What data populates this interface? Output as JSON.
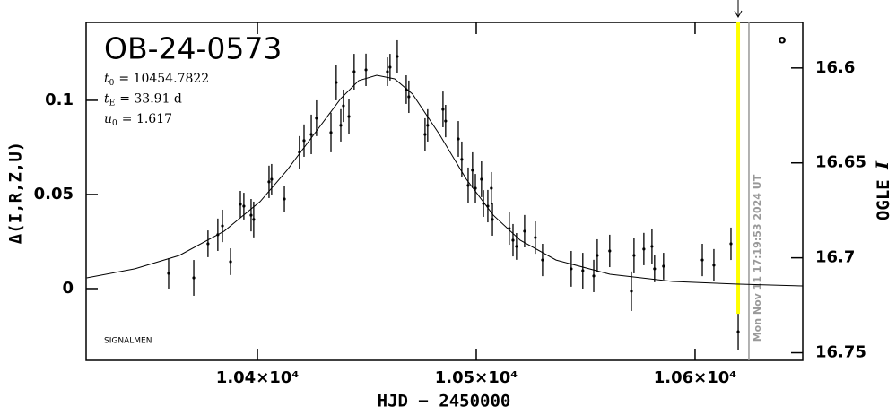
{
  "chart_data": {
    "type": "scatter",
    "title": "OB-24-0573",
    "params": [
      {
        "symbol": "t",
        "sub": "0",
        "text": "= 10454.7822"
      },
      {
        "symbol": "t",
        "sub": "E",
        "text": "= 33.91 d"
      },
      {
        "symbol": "u",
        "sub": "0",
        "text": "= 1.617"
      }
    ],
    "credit": "SIGNALMEN",
    "corner_mark": "o",
    "xlabel": "HJD − 2450000",
    "ylabel": "Δ(I,R,Z,U)",
    "y2label": [
      "OGLE",
      "I"
    ],
    "xlim": [
      10321.7,
      10649.2
    ],
    "xticks": [
      {
        "value": 10400,
        "label": "1.04×10⁴"
      },
      {
        "value": 10500,
        "label": "1.05×10⁴"
      },
      {
        "value": 10600,
        "label": "1.06×10⁴"
      }
    ],
    "ylim": [
      -0.0381,
      0.1414
    ],
    "yticks": [
      0,
      0.05,
      0.1
    ],
    "y2lim": [
      16.754,
      16.576
    ],
    "y2ticks": [
      16.6,
      16.65,
      16.7,
      16.75
    ],
    "color": "#000000",
    "highlight_x": 10619.7,
    "highlight_color": "#ffff00",
    "now_x": 10624.6,
    "now_label": "Mon Nov 11 17:19:53 2024 UT",
    "now_color": "#999999",
    "points": {
      "x": [
        10359.4,
        10370.9,
        10377.4,
        10381.9,
        10384.0,
        10387.7,
        10392.2,
        10393.8,
        10397.1,
        10398.3,
        10405.3,
        10406.5,
        10412.3,
        10419.2,
        10421.3,
        10424.6,
        10427.0,
        10433.6,
        10436.0,
        10438.1,
        10439.3,
        10441.8,
        10444.2,
        10449.6,
        10459.4,
        10460.6,
        10463.9,
        10468.0,
        10469.2,
        10476.6,
        10477.8,
        10484.8,
        10486.0,
        10491.8,
        10493.4,
        10496.3,
        10498.3,
        10499.6,
        10502.4,
        10503.3,
        10505.3,
        10506.9,
        10507.4,
        10515.1,
        10516.8,
        10518.4,
        10522.1,
        10527.0,
        10530.3,
        10543.4,
        10548.7,
        10553.7,
        10555.3,
        10561.0,
        10570.9,
        10572.1,
        10576.6,
        10580.3,
        10581.5,
        10585.6,
        10603.3,
        10608.6,
        10616.4,
        10619.7
      ],
      "values": [
        0.0081,
        0.0057,
        0.0238,
        0.0286,
        0.0333,
        0.0143,
        0.0448,
        0.0438,
        0.039,
        0.0367,
        0.0567,
        0.0581,
        0.0476,
        0.0724,
        0.0786,
        0.0819,
        0.0905,
        0.0829,
        0.1095,
        0.0867,
        0.0971,
        0.0914,
        0.1152,
        0.1162,
        0.1152,
        0.1176,
        0.1233,
        0.1057,
        0.1019,
        0.0819,
        0.0867,
        0.0952,
        0.089,
        0.0795,
        0.0686,
        0.0548,
        0.0629,
        0.0533,
        0.0581,
        0.0452,
        0.0438,
        0.0533,
        0.0367,
        0.0319,
        0.0257,
        0.0224,
        0.0305,
        0.0271,
        0.0152,
        0.0105,
        0.0095,
        0.0067,
        0.0176,
        0.02,
        -0.0014,
        0.0176,
        0.021,
        0.0224,
        0.0105,
        0.0119,
        0.0152,
        0.0124,
        0.0238,
        -0.0229
      ],
      "errors": [
        0.0081,
        0.0095,
        0.0071,
        0.0086,
        0.0086,
        0.0071,
        0.0071,
        0.0071,
        0.0086,
        0.0095,
        0.0086,
        0.0081,
        0.0071,
        0.0086,
        0.0086,
        0.0105,
        0.0095,
        0.0105,
        0.0095,
        0.0086,
        0.0086,
        0.0095,
        0.0095,
        0.0086,
        0.0076,
        0.0071,
        0.0086,
        0.0076,
        0.0086,
        0.0086,
        0.0086,
        0.0095,
        0.0086,
        0.0095,
        0.0095,
        0.0095,
        0.0095,
        0.0076,
        0.0095,
        0.0071,
        0.0086,
        0.0086,
        0.0086,
        0.0086,
        0.0086,
        0.0071,
        0.0086,
        0.0086,
        0.0086,
        0.0095,
        0.0095,
        0.0086,
        0.0086,
        0.0086,
        0.0105,
        0.0095,
        0.0086,
        0.0095,
        0.0071,
        0.0071,
        0.0086,
        0.0086,
        0.0086,
        0.0095
      ]
    },
    "model": {
      "x": [
        10322,
        10344,
        10364.3,
        10384.8,
        10401.2,
        10413.5,
        10425.8,
        10438.1,
        10446.3,
        10454.5,
        10462.7,
        10470.9,
        10483.2,
        10495.5,
        10507.8,
        10520.1,
        10536.5,
        10561.1,
        10589.8,
        10618.4,
        10649.2
      ],
      "values": [
        0.0057,
        0.0105,
        0.0176,
        0.0305,
        0.0462,
        0.0629,
        0.0819,
        0.101,
        0.1105,
        0.1133,
        0.1114,
        0.1033,
        0.0819,
        0.0581,
        0.039,
        0.0257,
        0.0152,
        0.0076,
        0.0038,
        0.0024,
        0.0014
      ]
    }
  }
}
